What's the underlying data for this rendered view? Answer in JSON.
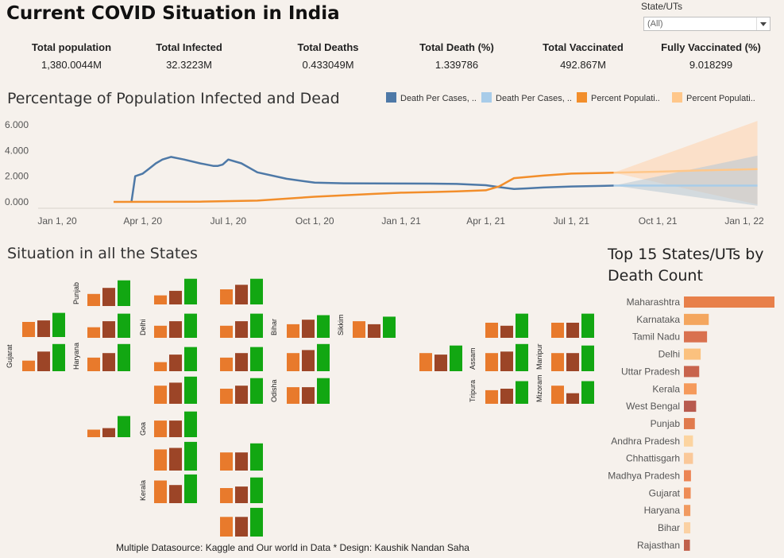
{
  "header": {
    "title": "Current COVID Situation in India"
  },
  "filter": {
    "label": "State/UTs",
    "value": "(All)"
  },
  "kpis": [
    {
      "label": "Total population",
      "value": "1,380.0044M"
    },
    {
      "label": "Total Infected",
      "value": "32.3223M"
    },
    {
      "label": "Total Deaths",
      "value": "0.433049M"
    },
    {
      "label": "Total Death (%)",
      "value": "1.339786"
    },
    {
      "label": "Total Vaccinated",
      "value": "492.867M"
    },
    {
      "label": "Fully Vaccinated (%)",
      "value": "9.018299"
    }
  ],
  "line_section": {
    "title": "Percentage of Population Infected and Dead"
  },
  "legend": [
    {
      "label": "Death Per Cases, ..",
      "color": "#4e79a7"
    },
    {
      "label": "Death Per Cases, ..",
      "color": "#a8cce9"
    },
    {
      "label": "Percent Populati..",
      "color": "#f28e2b"
    },
    {
      "label": "Percent Populati..",
      "color": "#ffc78a"
    }
  ],
  "states_section": {
    "title": "Situation in all the States"
  },
  "state_labels": [
    "Punjab",
    "Gujarat",
    "Haryana",
    "Delhi",
    "Bihar",
    "Sikkim",
    "Odisha",
    "Assam",
    "Manipur",
    "Tripura",
    "Mizoram",
    "Goa",
    "Kerala"
  ],
  "top15": {
    "title_line1": "Top 15 States/UTs by",
    "title_line2": "Death Count"
  },
  "footer": "Multiple Datasource: Kaggle and Our world in Data  * Design: Kaushik Nandan Saha",
  "chart_data": [
    {
      "type": "line",
      "title": "Percentage of Population Infected and Dead",
      "x_ticks": [
        "Jan 1, 20",
        "Apr 1, 20",
        "Jul 1, 20",
        "Oct 1, 20",
        "Jan 1, 21",
        "Apr 1, 21",
        "Jul 1, 21",
        "Oct 1, 21",
        "Jan 1, 22"
      ],
      "y_ticks": [
        "0.000",
        "2.000",
        "4.000",
        "6.000"
      ],
      "ylim": [
        0,
        6
      ],
      "series": [
        {
          "name": "Death Per Cases, ..",
          "color": "#4e79a7",
          "x": [
            "2020-03-20",
            "2020-03-24",
            "2020-04-01",
            "2020-04-08",
            "2020-04-15",
            "2020-04-22",
            "2020-05-01",
            "2020-05-15",
            "2020-06-01",
            "2020-06-15",
            "2020-06-20",
            "2020-06-25",
            "2020-07-01",
            "2020-07-15",
            "2020-08-01",
            "2020-09-01",
            "2020-10-01",
            "2020-11-01",
            "2020-12-01",
            "2021-01-01",
            "2021-02-01",
            "2021-03-01",
            "2021-04-01",
            "2021-04-15",
            "2021-05-01",
            "2021-05-15",
            "2021-06-01",
            "2021-07-01",
            "2021-08-15"
          ],
          "y": [
            0.0,
            2.0,
            2.2,
            2.6,
            3.0,
            3.3,
            3.5,
            3.3,
            3.0,
            2.8,
            2.8,
            2.9,
            3.3,
            3.0,
            2.3,
            1.8,
            1.5,
            1.45,
            1.44,
            1.43,
            1.42,
            1.4,
            1.3,
            1.15,
            1.0,
            1.05,
            1.12,
            1.2,
            1.27
          ]
        },
        {
          "name": "Death Per Cases, ..",
          "color": "#a8cce9",
          "x": [
            "2021-08-15",
            "2021-10-01",
            "2021-11-15",
            "2022-01-15"
          ],
          "y": [
            1.27,
            1.27,
            1.27,
            1.27
          ]
        },
        {
          "name": "Percent Populati..",
          "color": "#f28e2b",
          "x": [
            "2020-03-01",
            "2020-06-01",
            "2020-08-01",
            "2020-10-01",
            "2020-12-01",
            "2021-01-01",
            "2021-02-01",
            "2021-03-01",
            "2021-04-01",
            "2021-04-15",
            "2021-05-01",
            "2021-06-01",
            "2021-07-01",
            "2021-08-15"
          ],
          "y": [
            0.0,
            0.02,
            0.1,
            0.4,
            0.62,
            0.72,
            0.77,
            0.82,
            0.9,
            1.2,
            1.85,
            2.05,
            2.2,
            2.27
          ]
        },
        {
          "name": "Percent Populati..",
          "color": "#ffc78a",
          "x": [
            "2021-08-15",
            "2021-10-01",
            "2021-11-15",
            "2022-01-15"
          ],
          "y": [
            2.27,
            2.35,
            2.45,
            2.55
          ]
        }
      ]
    },
    {
      "type": "bar",
      "title": "Top 15 States/UTs by Death Count",
      "orientation": "horizontal",
      "categories": [
        "Maharashtra",
        "Karnataka",
        "Tamil Nadu",
        "Delhi",
        "Uttar Pradesh",
        "Kerala",
        "West Bengal",
        "Punjab",
        "Andhra Pradesh",
        "Chhattisgarh",
        "Madhya Pradesh",
        "Gujarat",
        "Haryana",
        "Bihar",
        "Rajasthan"
      ],
      "values": [
        135000,
        37000,
        34500,
        25000,
        22800,
        18900,
        18200,
        16300,
        13500,
        13500,
        10500,
        10100,
        9600,
        9600,
        8950
      ],
      "colors": [
        "#e8804a",
        "#f4a65e",
        "#d9714f",
        "#fbc17e",
        "#c8644d",
        "#f59a5b",
        "#b85a4e",
        "#e07a4d",
        "#fcd4a0",
        "#fac899",
        "#ec8453",
        "#ee8c56",
        "#f19a60",
        "#fbd1a3",
        "#c0604b"
      ]
    }
  ]
}
